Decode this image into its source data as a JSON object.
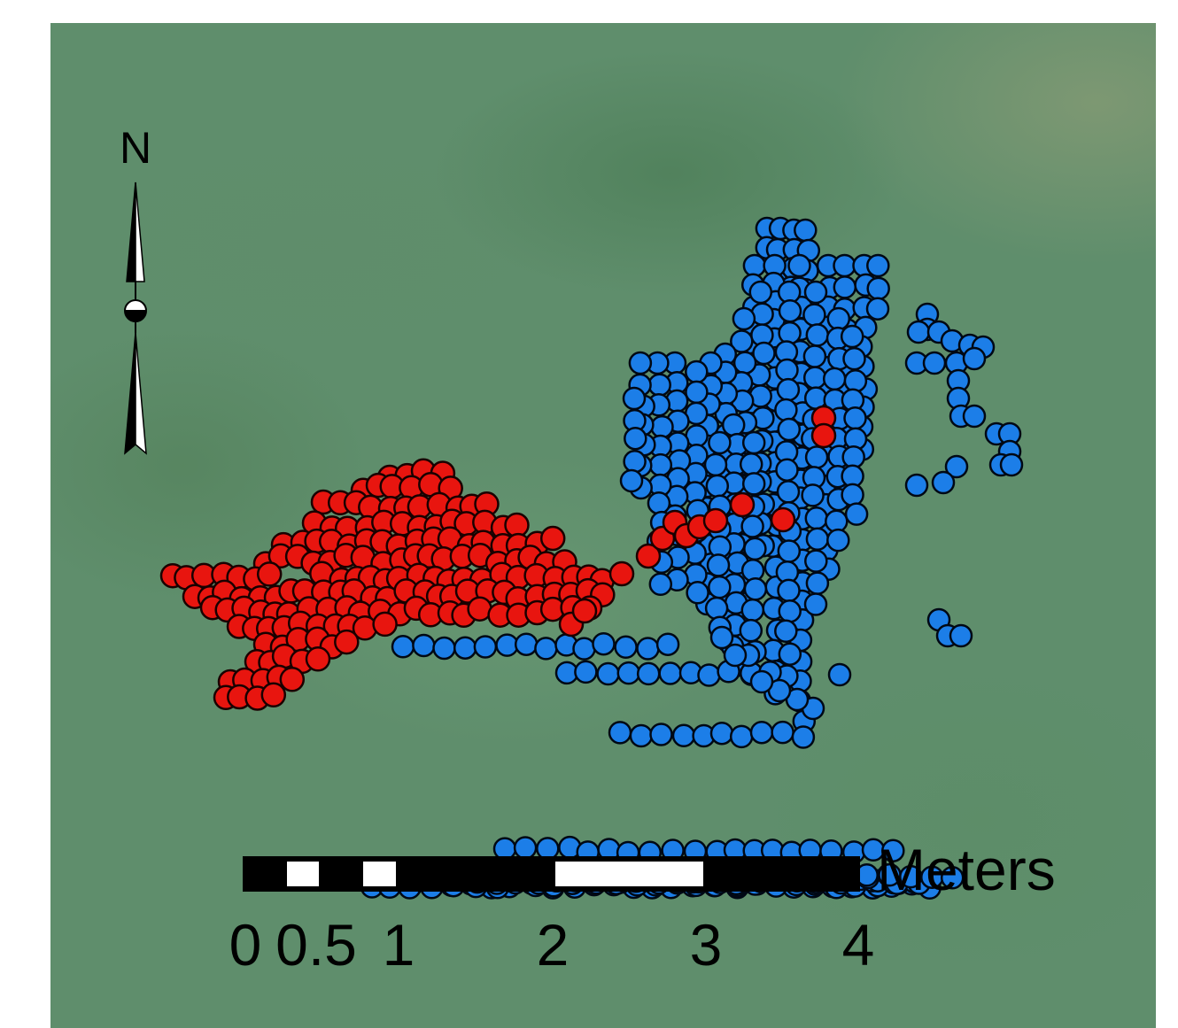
{
  "north_arrow": {
    "label": "N"
  },
  "scale_bar": {
    "unit_label": "Meters",
    "ticks": [
      "0",
      "0.5",
      "1",
      "2",
      "3",
      "4"
    ]
  },
  "layers": [
    {
      "name": "red-points",
      "color": "#e8150f",
      "stroke": "#1a0000"
    },
    {
      "name": "blue-points",
      "color": "#1c7ee8",
      "stroke": "#000814"
    }
  ]
}
